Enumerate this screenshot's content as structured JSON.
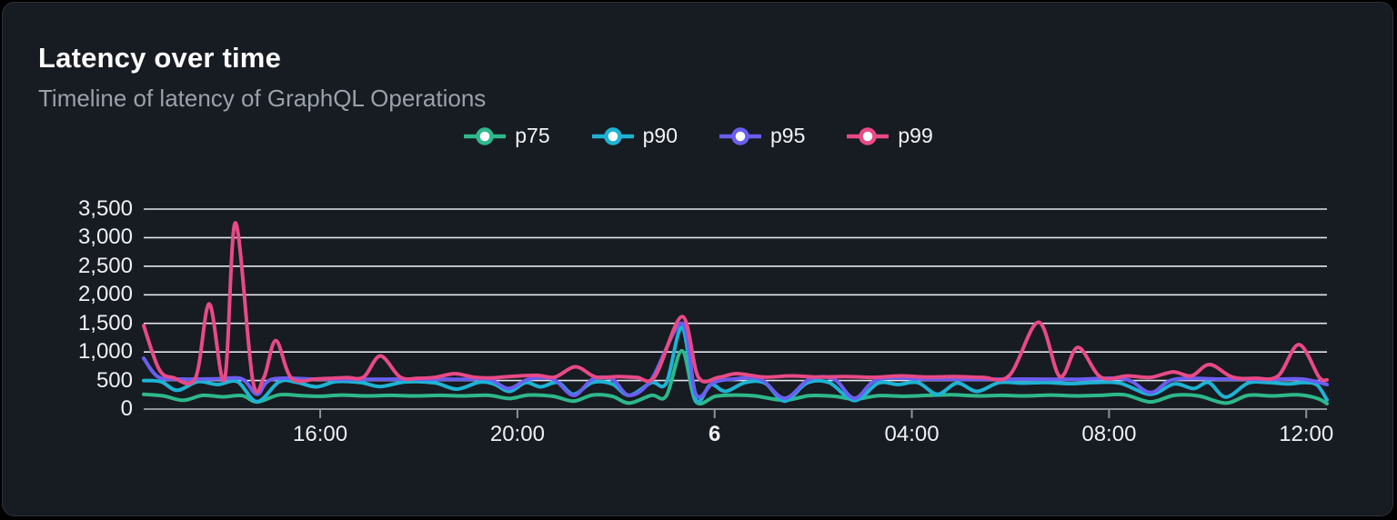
{
  "panel": {
    "title": "Latency over time",
    "subtitle": "Timeline of latency of GraphQL Operations"
  },
  "colors": {
    "background": "#000000",
    "card_bg": "#171b22",
    "card_border": "#2c323b",
    "title": "#ffffff",
    "subtitle": "#9aa1aa",
    "grid": "#e3e5ec",
    "axis": "#8e939b",
    "tick_label": "#eef0f3",
    "p75": "#2eb88a",
    "p90": "#1eb3d4",
    "p95": "#6a5ef0",
    "p99": "#e84a86"
  },
  "chart_data": {
    "type": "line",
    "title": "Latency over time",
    "subtitle": "Timeline of latency of GraphQL Operations",
    "grid": "horizontal",
    "legend_position": "top-center",
    "ylim": [
      0,
      3500
    ],
    "x_domain_hours": [
      0,
      24
    ],
    "y_ticks": [
      {
        "value": 0,
        "label": "0"
      },
      {
        "value": 500,
        "label": "500"
      },
      {
        "value": 1000,
        "label": "1,000"
      },
      {
        "value": 1500,
        "label": "1,500"
      },
      {
        "value": 2000,
        "label": "2,000"
      },
      {
        "value": 2500,
        "label": "2,500"
      },
      {
        "value": 3000,
        "label": "3,000"
      },
      {
        "value": 3500,
        "label": "3,500"
      }
    ],
    "x_ticks": [
      {
        "t_hours": 3.58,
        "label": "16:00",
        "bold": false
      },
      {
        "t_hours": 7.58,
        "label": "20:00",
        "bold": false
      },
      {
        "t_hours": 11.58,
        "label": "6",
        "bold": true
      },
      {
        "t_hours": 15.58,
        "label": "04:00",
        "bold": false
      },
      {
        "t_hours": 19.58,
        "label": "08:00",
        "bold": false
      },
      {
        "t_hours": 23.58,
        "label": "12:00",
        "bold": false
      }
    ],
    "series": [
      {
        "name": "p75",
        "color": "#2eb88a",
        "points": [
          [
            0,
            260
          ],
          [
            0.4,
            230
          ],
          [
            0.8,
            155
          ],
          [
            1.2,
            240
          ],
          [
            1.6,
            215
          ],
          [
            2.0,
            235
          ],
          [
            2.3,
            125
          ],
          [
            2.75,
            250
          ],
          [
            3.2,
            235
          ],
          [
            3.6,
            225
          ],
          [
            4.0,
            245
          ],
          [
            4.5,
            230
          ],
          [
            5.0,
            240
          ],
          [
            5.5,
            230
          ],
          [
            6.0,
            240
          ],
          [
            6.5,
            230
          ],
          [
            7.0,
            240
          ],
          [
            7.42,
            185
          ],
          [
            7.8,
            245
          ],
          [
            8.3,
            225
          ],
          [
            8.72,
            140
          ],
          [
            9.1,
            245
          ],
          [
            9.5,
            225
          ],
          [
            9.85,
            105
          ],
          [
            10.3,
            240
          ],
          [
            10.6,
            230
          ],
          [
            10.92,
            1020
          ],
          [
            11.2,
            130
          ],
          [
            11.6,
            225
          ],
          [
            12.0,
            245
          ],
          [
            12.4,
            230
          ],
          [
            13.0,
            155
          ],
          [
            13.5,
            235
          ],
          [
            14.0,
            225
          ],
          [
            14.42,
            175
          ],
          [
            14.9,
            235
          ],
          [
            15.4,
            225
          ],
          [
            15.9,
            240
          ],
          [
            16.4,
            250
          ],
          [
            16.9,
            230
          ],
          [
            17.4,
            240
          ],
          [
            17.9,
            230
          ],
          [
            18.4,
            245
          ],
          [
            18.9,
            230
          ],
          [
            19.4,
            240
          ],
          [
            19.9,
            250
          ],
          [
            20.42,
            125
          ],
          [
            20.9,
            240
          ],
          [
            21.4,
            230
          ],
          [
            21.95,
            105
          ],
          [
            22.4,
            240
          ],
          [
            22.9,
            230
          ],
          [
            23.4,
            250
          ],
          [
            23.8,
            190
          ],
          [
            24,
            95
          ]
        ]
      },
      {
        "name": "p90",
        "color": "#1eb3d4",
        "points": [
          [
            0,
            500
          ],
          [
            0.35,
            480
          ],
          [
            0.68,
            330
          ],
          [
            1.1,
            480
          ],
          [
            1.5,
            430
          ],
          [
            1.9,
            480
          ],
          [
            2.3,
            130
          ],
          [
            2.75,
            480
          ],
          [
            3.1,
            470
          ],
          [
            3.5,
            390
          ],
          [
            3.9,
            480
          ],
          [
            4.4,
            465
          ],
          [
            4.8,
            395
          ],
          [
            5.3,
            475
          ],
          [
            5.9,
            460
          ],
          [
            6.35,
            350
          ],
          [
            6.8,
            470
          ],
          [
            7.1,
            440
          ],
          [
            7.42,
            310
          ],
          [
            7.75,
            465
          ],
          [
            8.05,
            390
          ],
          [
            8.4,
            465
          ],
          [
            8.72,
            260
          ],
          [
            9.1,
            465
          ],
          [
            9.5,
            440
          ],
          [
            9.85,
            240
          ],
          [
            10.3,
            465
          ],
          [
            10.6,
            455
          ],
          [
            10.92,
            1430
          ],
          [
            11.2,
            160
          ],
          [
            11.5,
            430
          ],
          [
            11.8,
            310
          ],
          [
            12.2,
            465
          ],
          [
            12.6,
            455
          ],
          [
            13.0,
            140
          ],
          [
            13.45,
            455
          ],
          [
            13.9,
            465
          ],
          [
            14.42,
            150
          ],
          [
            14.9,
            455
          ],
          [
            15.3,
            430
          ],
          [
            15.7,
            465
          ],
          [
            16.1,
            260
          ],
          [
            16.5,
            455
          ],
          [
            16.9,
            310
          ],
          [
            17.35,
            465
          ],
          [
            17.8,
            455
          ],
          [
            18.3,
            465
          ],
          [
            18.8,
            445
          ],
          [
            19.3,
            465
          ],
          [
            19.8,
            455
          ],
          [
            20.42,
            260
          ],
          [
            20.9,
            440
          ],
          [
            21.3,
            360
          ],
          [
            21.6,
            465
          ],
          [
            21.95,
            210
          ],
          [
            22.4,
            455
          ],
          [
            22.8,
            465
          ],
          [
            23.2,
            440
          ],
          [
            23.55,
            465
          ],
          [
            23.8,
            420
          ],
          [
            24,
            160
          ]
        ]
      },
      {
        "name": "p95",
        "color": "#6a5ef0",
        "points": [
          [
            0,
            890
          ],
          [
            0.3,
            560
          ],
          [
            0.8,
            525
          ],
          [
            1.5,
            530
          ],
          [
            2.0,
            525
          ],
          [
            2.3,
            260
          ],
          [
            2.6,
            520
          ],
          [
            3.5,
            525
          ],
          [
            4.5,
            520
          ],
          [
            5.5,
            525
          ],
          [
            6.5,
            520
          ],
          [
            7.0,
            525
          ],
          [
            7.4,
            360
          ],
          [
            7.8,
            520
          ],
          [
            8.3,
            525
          ],
          [
            8.72,
            240
          ],
          [
            9.1,
            520
          ],
          [
            9.5,
            525
          ],
          [
            9.85,
            240
          ],
          [
            10.3,
            520
          ],
          [
            10.92,
            1500
          ],
          [
            11.2,
            260
          ],
          [
            11.55,
            460
          ],
          [
            11.9,
            520
          ],
          [
            12.5,
            525
          ],
          [
            13.0,
            190
          ],
          [
            13.5,
            520
          ],
          [
            14.0,
            525
          ],
          [
            14.42,
            190
          ],
          [
            14.9,
            520
          ],
          [
            15.9,
            525
          ],
          [
            16.9,
            520
          ],
          [
            17.9,
            525
          ],
          [
            18.9,
            520
          ],
          [
            19.9,
            525
          ],
          [
            20.42,
            290
          ],
          [
            20.9,
            520
          ],
          [
            21.9,
            525
          ],
          [
            22.9,
            520
          ],
          [
            23.5,
            525
          ],
          [
            24,
            430
          ]
        ]
      },
      {
        "name": "p99",
        "color": "#e84a86",
        "points": [
          [
            0,
            1460
          ],
          [
            0.31,
            700
          ],
          [
            0.6,
            550
          ],
          [
            1.05,
            545
          ],
          [
            1.33,
            1840
          ],
          [
            1.64,
            520
          ],
          [
            1.86,
            3260
          ],
          [
            2.21,
            510
          ],
          [
            2.44,
            560
          ],
          [
            2.68,
            1200
          ],
          [
            3.0,
            540
          ],
          [
            3.54,
            530
          ],
          [
            4.1,
            550
          ],
          [
            4.46,
            560
          ],
          [
            4.8,
            930
          ],
          [
            5.2,
            560
          ],
          [
            5.57,
            540
          ],
          [
            5.94,
            560
          ],
          [
            6.31,
            620
          ],
          [
            6.68,
            560
          ],
          [
            7.05,
            545
          ],
          [
            7.42,
            570
          ],
          [
            7.97,
            590
          ],
          [
            8.34,
            560
          ],
          [
            8.76,
            740
          ],
          [
            9.17,
            560
          ],
          [
            9.63,
            570
          ],
          [
            10.0,
            555
          ],
          [
            10.37,
            570
          ],
          [
            10.92,
            1620
          ],
          [
            11.25,
            560
          ],
          [
            11.66,
            555
          ],
          [
            12.03,
            620
          ],
          [
            12.58,
            560
          ],
          [
            13.13,
            580
          ],
          [
            13.69,
            560
          ],
          [
            14.24,
            570
          ],
          [
            14.8,
            555
          ],
          [
            15.35,
            580
          ],
          [
            15.9,
            560
          ],
          [
            16.46,
            570
          ],
          [
            17.01,
            555
          ],
          [
            17.56,
            590
          ],
          [
            18.15,
            1520
          ],
          [
            18.58,
            570
          ],
          [
            18.95,
            1080
          ],
          [
            19.41,
            560
          ],
          [
            19.96,
            580
          ],
          [
            20.42,
            555
          ],
          [
            20.88,
            650
          ],
          [
            21.25,
            580
          ],
          [
            21.62,
            780
          ],
          [
            22.08,
            560
          ],
          [
            22.55,
            540
          ],
          [
            23.01,
            580
          ],
          [
            23.43,
            1130
          ],
          [
            23.84,
            560
          ],
          [
            24,
            510
          ]
        ]
      }
    ]
  }
}
